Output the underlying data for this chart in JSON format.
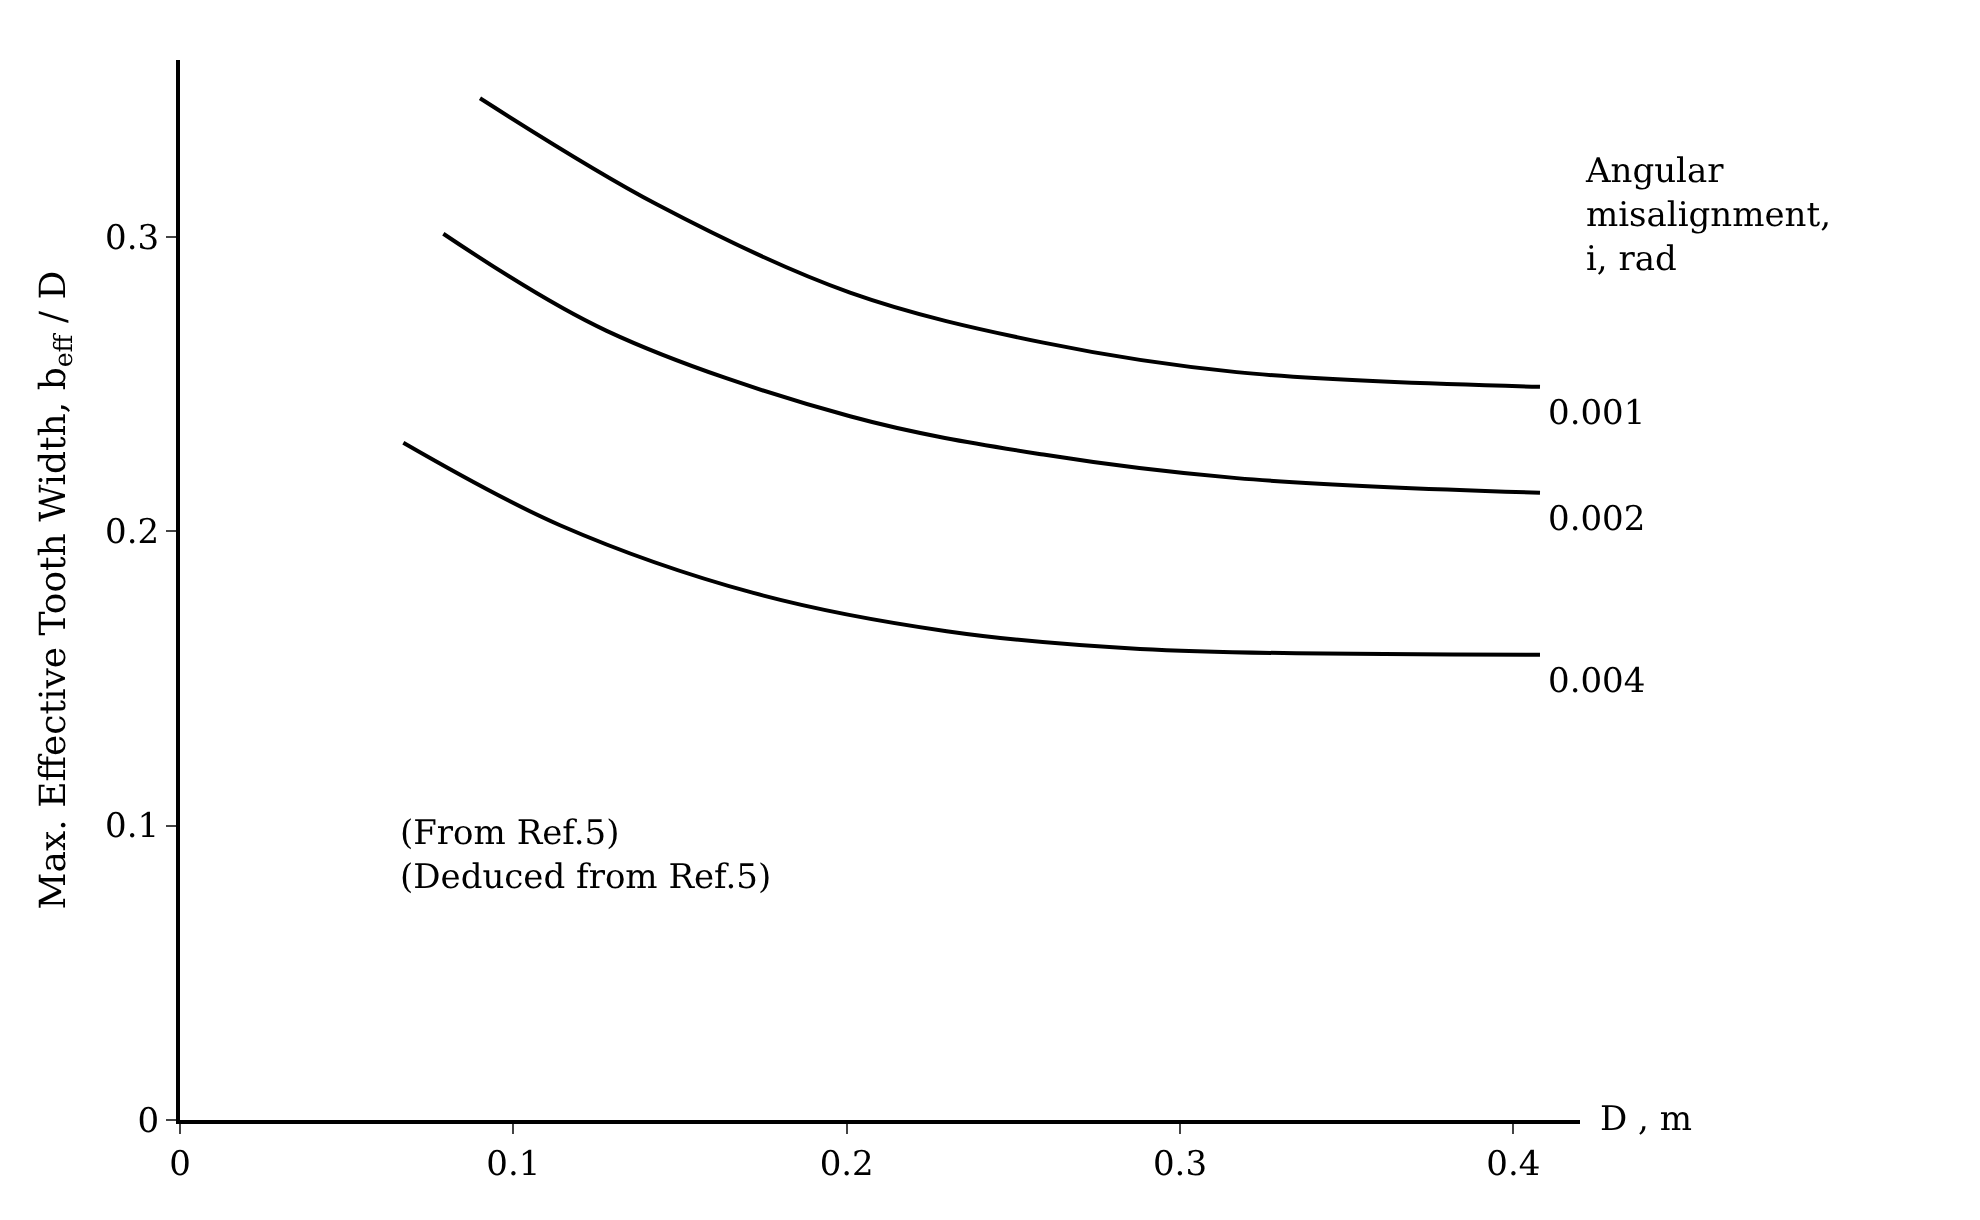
{
  "chart_data": {
    "type": "line",
    "xlabel": "D , m",
    "ylabel": "Max. Effective Tooth Width, b$_{eff}$ / D",
    "legend_title": "Angular misalignment, i, rad",
    "xlim": [
      0,
      0.42
    ],
    "ylim": [
      0,
      0.36
    ],
    "xticks": [
      0,
      0.1,
      0.2,
      0.3,
      0.4
    ],
    "yticks": [
      0,
      0.1,
      0.2,
      0.3
    ],
    "legend": false,
    "marker": "none",
    "line_style": "solid",
    "annotations": [
      "(From Ref.5)",
      "(Deduced from Ref.5)"
    ],
    "series": [
      {
        "name": "0.001",
        "color": "#000000",
        "x": [
          0.09,
          0.143,
          0.201,
          0.259,
          0.317,
          0.408
        ],
        "values": [
          0.347,
          0.311,
          0.281,
          0.264,
          0.254,
          0.249
        ]
      },
      {
        "name": "0.002",
        "color": "#000000",
        "x": [
          0.079,
          0.128,
          0.201,
          0.259,
          0.317,
          0.408
        ],
        "values": [
          0.301,
          0.268,
          0.239,
          0.226,
          0.218,
          0.213
        ]
      },
      {
        "name": "0.004",
        "color": "#000000",
        "x": [
          0.067,
          0.114,
          0.172,
          0.23,
          0.288,
          0.408
        ],
        "values": [
          0.23,
          0.202,
          0.179,
          0.166,
          0.16,
          0.158
        ]
      }
    ]
  }
}
